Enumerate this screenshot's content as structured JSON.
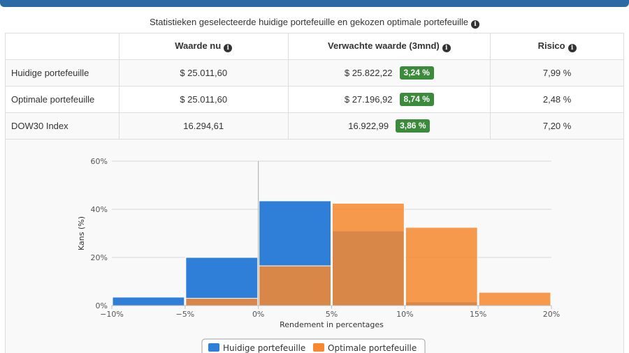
{
  "caption": "Statistieken geselecteerde huidige portefeuille en gekozen optimale portefeuille",
  "table": {
    "headers": [
      "",
      "Waarde nu",
      "Verwachte waarde (3mnd)",
      "Risico"
    ],
    "rows": [
      {
        "name": "Huidige portefeuille",
        "value_now": "$ 25.011,60",
        "expected": "$ 25.822,22",
        "pct": "3,24 %",
        "risk": "7,99 %"
      },
      {
        "name": "Optimale portefeuille",
        "value_now": "$ 25.011,60",
        "expected": "$ 27.196,92",
        "pct": "8,74 %",
        "risk": "2,48 %"
      },
      {
        "name": "DOW30 Index",
        "value_now": "16.294,61",
        "expected": "16.922,99",
        "pct": "3,86 %",
        "risk": "7,20 %"
      }
    ]
  },
  "colors": {
    "header_bar": "#2c6aa6",
    "badge": "#3c8a3c",
    "series_current": "#2f7ed8",
    "series_optimal": "#f7882f"
  },
  "chart_data": {
    "type": "bar",
    "categories": [
      "-10%",
      "-5%",
      "0%",
      "5%",
      "10%",
      "15%"
    ],
    "bin_edges": [
      -10,
      -5,
      0,
      5,
      10,
      15,
      20
    ],
    "x_ticks": [
      "−10%",
      "−5%",
      "0%",
      "5%",
      "10%",
      "15%",
      "20%"
    ],
    "y_ticks": [
      "0%",
      "20%",
      "40%",
      "60%"
    ],
    "ylim": [
      0,
      60
    ],
    "xlabel": "Rendement in percentages",
    "ylabel": "Kans (%)",
    "series": [
      {
        "name": "Huidige portefeuille",
        "values": [
          3.5,
          20,
          43.5,
          31,
          1.5,
          0
        ]
      },
      {
        "name": "Optimale portefeuille",
        "values": [
          0,
          3,
          16.5,
          42.5,
          32.5,
          5.5
        ]
      }
    ],
    "legend_position": "bottom-center"
  }
}
